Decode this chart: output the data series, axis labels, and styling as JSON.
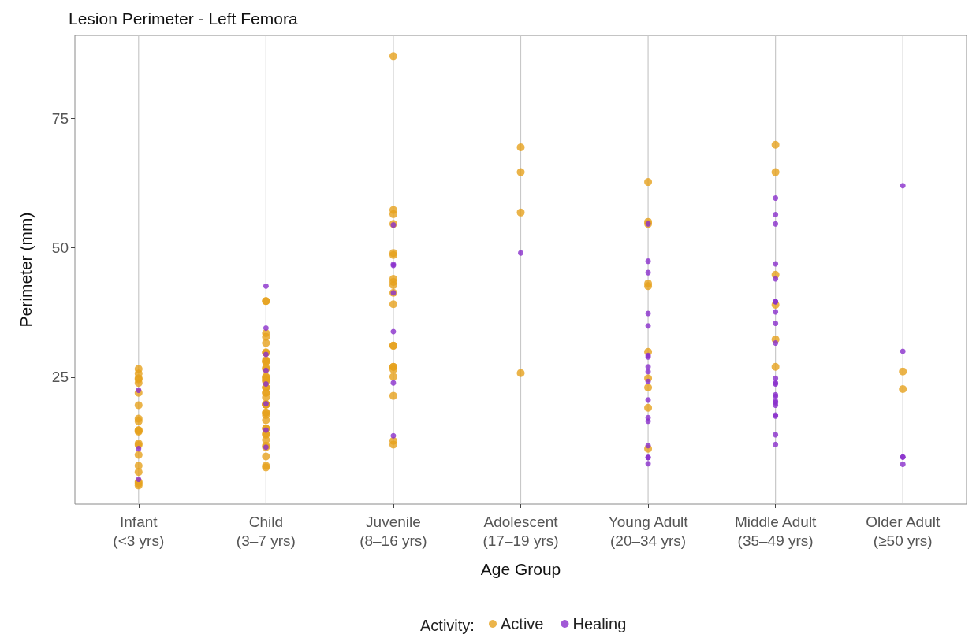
{
  "chart_data": {
    "type": "scatter",
    "title": "Lesion Perimeter - Left Femora",
    "xlabel": "Age Group",
    "ylabel": "Perimeter (mm)",
    "legend_title": "Activity:",
    "categories": [
      "Infant\n(<3 yrs)",
      "Child\n(3–7 yrs)",
      "Juvenile\n(8–16 yrs)",
      "Adolescent\n(17–19 yrs)",
      "Young Adult\n(20–34 yrs)",
      "Middle Adult\n(35–49 yrs)",
      "Older Adult\n(≥50 yrs)"
    ],
    "ylim": [
      0.5,
      91
    ],
    "yticks": [
      25,
      50,
      75
    ],
    "grid": "x",
    "legend": "bottom",
    "marker": "circle",
    "series": [
      {
        "name": "Active",
        "color": "#e6a11d",
        "x": [
          "Infant\n(<3 yrs)",
          "Infant\n(<3 yrs)",
          "Infant\n(<3 yrs)",
          "Infant\n(<3 yrs)",
          "Infant\n(<3 yrs)",
          "Infant\n(<3 yrs)",
          "Infant\n(<3 yrs)",
          "Infant\n(<3 yrs)",
          "Infant\n(<3 yrs)",
          "Infant\n(<3 yrs)",
          "Infant\n(<3 yrs)",
          "Infant\n(<3 yrs)",
          "Infant\n(<3 yrs)",
          "Infant\n(<3 yrs)",
          "Infant\n(<3 yrs)",
          "Infant\n(<3 yrs)",
          "Infant\n(<3 yrs)",
          "Infant\n(<3 yrs)",
          "Infant\n(<3 yrs)",
          "Infant\n(<3 yrs)",
          "Child\n(3–7 yrs)",
          "Child\n(3–7 yrs)",
          "Child\n(3–7 yrs)",
          "Child\n(3–7 yrs)",
          "Child\n(3–7 yrs)",
          "Child\n(3–7 yrs)",
          "Child\n(3–7 yrs)",
          "Child\n(3–7 yrs)",
          "Child\n(3–7 yrs)",
          "Child\n(3–7 yrs)",
          "Child\n(3–7 yrs)",
          "Child\n(3–7 yrs)",
          "Child\n(3–7 yrs)",
          "Child\n(3–7 yrs)",
          "Child\n(3–7 yrs)",
          "Child\n(3–7 yrs)",
          "Child\n(3–7 yrs)",
          "Child\n(3–7 yrs)",
          "Child\n(3–7 yrs)",
          "Child\n(3–7 yrs)",
          "Child\n(3–7 yrs)",
          "Child\n(3–7 yrs)",
          "Child\n(3–7 yrs)",
          "Child\n(3–7 yrs)",
          "Child\n(3–7 yrs)",
          "Child\n(3–7 yrs)",
          "Child\n(3–7 yrs)",
          "Child\n(3–7 yrs)",
          "Child\n(3–7 yrs)",
          "Child\n(3–7 yrs)",
          "Child\n(3–7 yrs)",
          "Child\n(3–7 yrs)",
          "Child\n(3–7 yrs)",
          "Child\n(3–7 yrs)",
          "Child\n(3–7 yrs)",
          "Child\n(3–7 yrs)",
          "Child\n(3–7 yrs)",
          "Child\n(3–7 yrs)",
          "Child\n(3–7 yrs)",
          "Child\n(3–7 yrs)",
          "Juvenile\n(8–16 yrs)",
          "Juvenile\n(8–16 yrs)",
          "Juvenile\n(8–16 yrs)",
          "Juvenile\n(8–16 yrs)",
          "Juvenile\n(8–16 yrs)",
          "Juvenile\n(8–16 yrs)",
          "Juvenile\n(8–16 yrs)",
          "Juvenile\n(8–16 yrs)",
          "Juvenile\n(8–16 yrs)",
          "Juvenile\n(8–16 yrs)",
          "Juvenile\n(8–16 yrs)",
          "Juvenile\n(8–16 yrs)",
          "Juvenile\n(8–16 yrs)",
          "Juvenile\n(8–16 yrs)",
          "Juvenile\n(8–16 yrs)",
          "Juvenile\n(8–16 yrs)",
          "Juvenile\n(8–16 yrs)",
          "Juvenile\n(8–16 yrs)",
          "Juvenile\n(8–16 yrs)",
          "Juvenile\n(8–16 yrs)",
          "Adolescent\n(17–19 yrs)",
          "Adolescent\n(17–19 yrs)",
          "Adolescent\n(17–19 yrs)",
          "Adolescent\n(17–19 yrs)",
          "Young Adult\n(20–34 yrs)",
          "Young Adult\n(20–34 yrs)",
          "Young Adult\n(20–34 yrs)",
          "Young Adult\n(20–34 yrs)",
          "Young Adult\n(20–34 yrs)",
          "Young Adult\n(20–34 yrs)",
          "Young Adult\n(20–34 yrs)",
          "Young Adult\n(20–34 yrs)",
          "Young Adult\n(20–34 yrs)",
          "Young Adult\n(20–34 yrs)",
          "Middle Adult\n(35–49 yrs)",
          "Middle Adult\n(35–49 yrs)",
          "Middle Adult\n(35–49 yrs)",
          "Middle Adult\n(35–49 yrs)",
          "Middle Adult\n(35–49 yrs)",
          "Middle Adult\n(35–49 yrs)",
          "Older Adult\n(≥50 yrs)",
          "Older Adult\n(≥50 yrs)"
        ],
        "values": [
          23.9,
          22.0,
          19.6,
          24.6,
          24.8,
          26.6,
          25.7,
          17.0,
          16.5,
          14.7,
          14.8,
          14.5,
          12.2,
          11.9,
          10.0,
          7.9,
          6.7,
          4.8,
          4.5,
          4.1,
          39.7,
          39.7,
          33.5,
          32.8,
          31.6,
          29.7,
          29.8,
          28.3,
          28.0,
          28.0,
          26.8,
          26.6,
          25.1,
          25.0,
          24.7,
          24.4,
          24.2,
          23.0,
          23.0,
          22.0,
          22.0,
          21.1,
          19.7,
          19.7,
          19.7,
          19.8,
          18.1,
          18.2,
          17.7,
          16.7,
          15.1,
          15.1,
          14.1,
          13.9,
          12.9,
          11.8,
          11.5,
          9.7,
          7.9,
          7.6,
          87.0,
          57.3,
          56.5,
          54.6,
          48.6,
          49.0,
          42.8,
          43.4,
          44.0,
          41.3,
          39.1,
          31.1,
          31.1,
          27.0,
          27.0,
          26.5,
          25.1,
          21.4,
          12.7,
          12.0,
          69.4,
          64.6,
          56.8,
          25.8,
          62.7,
          55.0,
          54.6,
          43.1,
          42.6,
          29.9,
          24.8,
          23.0,
          19.1,
          11.2,
          69.9,
          64.6,
          44.8,
          39.0,
          32.3,
          27.0,
          26.1,
          22.7
        ]
      },
      {
        "name": "Healing",
        "color": "#8a2fcc",
        "x": [
          "Infant\n(<3 yrs)",
          "Infant\n(<3 yrs)",
          "Infant\n(<3 yrs)",
          "Child\n(3–7 yrs)",
          "Child\n(3–7 yrs)",
          "Child\n(3–7 yrs)",
          "Child\n(3–7 yrs)",
          "Child\n(3–7 yrs)",
          "Child\n(3–7 yrs)",
          "Child\n(3–7 yrs)",
          "Child\n(3–7 yrs)",
          "Juvenile\n(8–16 yrs)",
          "Juvenile\n(8–16 yrs)",
          "Juvenile\n(8–16 yrs)",
          "Juvenile\n(8–16 yrs)",
          "Juvenile\n(8–16 yrs)",
          "Juvenile\n(8–16 yrs)",
          "Juvenile\n(8–16 yrs)",
          "Adolescent\n(17–19 yrs)",
          "Young Adult\n(20–34 yrs)",
          "Young Adult\n(20–34 yrs)",
          "Young Adult\n(20–34 yrs)",
          "Young Adult\n(20–34 yrs)",
          "Young Adult\n(20–34 yrs)",
          "Young Adult\n(20–34 yrs)",
          "Young Adult\n(20–34 yrs)",
          "Young Adult\n(20–34 yrs)",
          "Young Adult\n(20–34 yrs)",
          "Young Adult\n(20–34 yrs)",
          "Young Adult\n(20–34 yrs)",
          "Young Adult\n(20–34 yrs)",
          "Young Adult\n(20–34 yrs)",
          "Young Adult\n(20–34 yrs)",
          "Young Adult\n(20–34 yrs)",
          "Young Adult\n(20–34 yrs)",
          "Young Adult\n(20–34 yrs)",
          "Middle Adult\n(35–49 yrs)",
          "Middle Adult\n(35–49 yrs)",
          "Middle Adult\n(35–49 yrs)",
          "Middle Adult\n(35–49 yrs)",
          "Middle Adult\n(35–49 yrs)",
          "Middle Adult\n(35–49 yrs)",
          "Middle Adult\n(35–49 yrs)",
          "Middle Adult\n(35–49 yrs)",
          "Middle Adult\n(35–49 yrs)",
          "Middle Adult\n(35–49 yrs)",
          "Middle Adult\n(35–49 yrs)",
          "Middle Adult\n(35–49 yrs)",
          "Middle Adult\n(35–49 yrs)",
          "Middle Adult\n(35–49 yrs)",
          "Middle Adult\n(35–49 yrs)",
          "Middle Adult\n(35–49 yrs)",
          "Middle Adult\n(35–49 yrs)",
          "Middle Adult\n(35–49 yrs)",
          "Middle Adult\n(35–49 yrs)",
          "Middle Adult\n(35–49 yrs)",
          "Middle Adult\n(35–49 yrs)",
          "Middle Adult\n(35–49 yrs)",
          "Older Adult\n(≥50 yrs)",
          "Older Adult\n(≥50 yrs)",
          "Older Adult\n(≥50 yrs)",
          "Older Adult\n(≥50 yrs)",
          "Older Adult\n(≥50 yrs)"
        ],
        "values": [
          22.5,
          11.2,
          5.3,
          42.6,
          34.5,
          29.4,
          26.3,
          23.7,
          19.9,
          14.8,
          11.5,
          54.4,
          46.6,
          46.8,
          41.3,
          33.8,
          23.9,
          13.7,
          49.0,
          54.6,
          47.4,
          45.2,
          37.3,
          34.9,
          28.9,
          29.2,
          26.1,
          27.0,
          24.2,
          20.6,
          17.2,
          16.5,
          11.8,
          8.3,
          9.5,
          9.5,
          54.6,
          46.9,
          44.0,
          39.6,
          39.6,
          35.4,
          31.6,
          24.8,
          23.9,
          21.6,
          21.3,
          20.1,
          19.6,
          17.5,
          17.7,
          59.6,
          56.4,
          37.6,
          23.7,
          20.4,
          13.9,
          12.0,
          62.0,
          30.0,
          9.6,
          8.2,
          9.6
        ]
      }
    ]
  }
}
